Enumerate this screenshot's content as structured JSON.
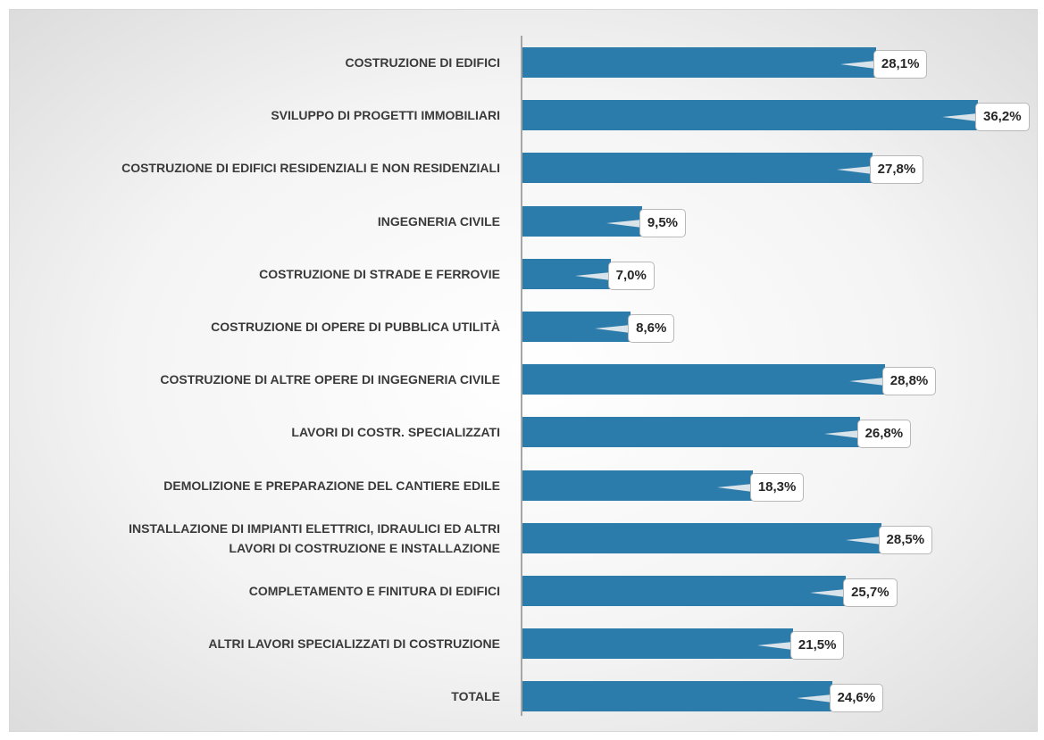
{
  "chart_data": {
    "type": "bar",
    "orientation": "horizontal",
    "color": "#2b7bab",
    "categories": [
      "COSTRUZIONE DI EDIFICI",
      "SVILUPPO DI PROGETTI IMMOBILIARI",
      "COSTRUZIONE DI EDIFICI RESIDENZIALI E NON RESIDENZIALI",
      "INGEGNERIA CIVILE",
      "COSTRUZIONE DI STRADE E FERROVIE",
      "COSTRUZIONE DI OPERE DI PUBBLICA UTILITÀ",
      "COSTRUZIONE DI ALTRE OPERE DI INGEGNERIA CIVILE",
      "LAVORI DI COSTR. SPECIALIZZATI",
      "DEMOLIZIONE E PREPARAZIONE DEL CANTIERE EDILE",
      "INSTALLAZIONE DI IMPIANTI ELETTRICI, IDRAULICI ED ALTRI LAVORI DI COSTRUZIONE E INSTALLAZIONE",
      "COMPLETAMENTO E FINITURA DI EDIFICI",
      "ALTRI LAVORI SPECIALIZZATI DI COSTRUZIONE",
      "TOTALE"
    ],
    "values": [
      28.1,
      36.2,
      27.8,
      9.5,
      7.0,
      8.6,
      28.8,
      26.8,
      18.3,
      28.5,
      25.7,
      21.5,
      24.6
    ],
    "value_labels": [
      "28,1%",
      "36,2%",
      "27,8%",
      "9,5%",
      "7,0%",
      "8,6%",
      "28,8%",
      "26,8%",
      "18,3%",
      "28,5%",
      "25,7%",
      "21,5%",
      "24,6%"
    ]
  }
}
